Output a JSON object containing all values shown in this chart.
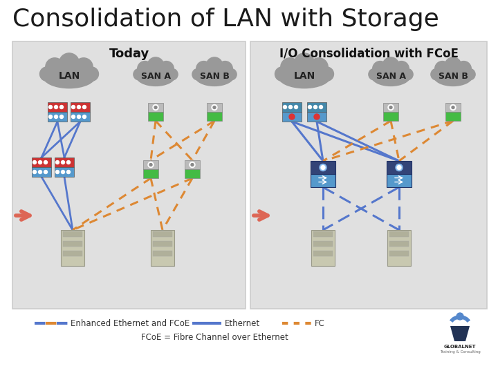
{
  "title": "Consolidation of LAN with Storage",
  "title_fontsize": 26,
  "title_color": "#1a1a1a",
  "bg_color": "#ffffff",
  "panel_bg": "#e0e0e0",
  "panel_left_title": "Today",
  "panel_right_title": "I/O Consolidation with FCoE",
  "panel_title_fontsize": 13,
  "footnote": "FCoE = Fibre Channel over Ethernet",
  "eth_color": "#5577cc",
  "fc_color": "#dd8833",
  "fcoe_dash_blue": "#5577cc",
  "fcoe_dash_orange": "#dd8833",
  "cloud_color": "#999999",
  "switch_red_top": "#cc3333",
  "switch_blue_bot": "#5599cc",
  "switch_teal_top": "#4488aa",
  "san_gray_top": "#aaaaaa",
  "san_green_bot": "#44bb44",
  "fcoe_sw_top": "#334488",
  "fcoe_sw_bot": "#5599cc",
  "server_body": "#c8c8b0",
  "arrow_color": "#dd6655",
  "legend_fcoe_blue": "#5577cc",
  "legend_fcoe_orange": "#dd8833",
  "legend_eth": "#5577cc",
  "legend_fc": "#dd8833"
}
